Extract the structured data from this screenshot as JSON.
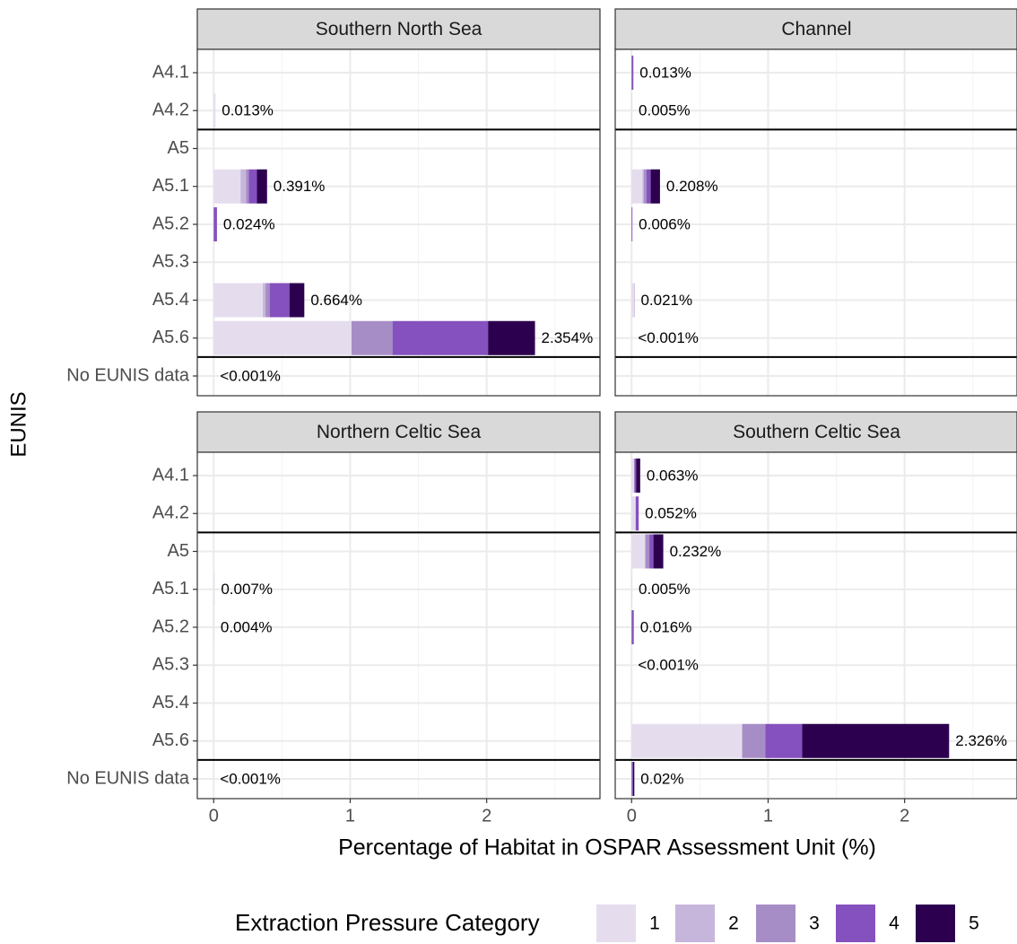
{
  "chart_data": {
    "type": "bar",
    "orientation": "horizontal",
    "stacked": true,
    "x_label": "Percentage of Habitat in OSPAR Assessment Unit (%)",
    "y_label": "EUNIS",
    "legend_title": "Extraction Pressure Category",
    "legend_position": "bottom",
    "grid": true,
    "categories": [
      "A4.1",
      "A4.2",
      "A5",
      "A5.1",
      "A5.2",
      "A5.3",
      "A5.4",
      "A5.6",
      "No EUNIS data"
    ],
    "xlim": [
      -0.12,
      2.83
    ],
    "xticks": [
      0,
      1,
      2
    ],
    "minor_xticks": [
      0.5,
      1.5,
      2.5
    ],
    "series": [
      {
        "name": "1",
        "color": "#e5ddee"
      },
      {
        "name": "2",
        "color": "#c6b6db"
      },
      {
        "name": "3",
        "color": "#a78dc6"
      },
      {
        "name": "4",
        "color": "#8551be"
      },
      {
        "name": "5",
        "color": "#2d004f"
      }
    ],
    "facets": [
      {
        "title": "Southern North Sea",
        "values": [
          [
            0,
            0.013,
            0,
            0.197,
            0,
            0,
            0.36,
            1.01,
            0.0005
          ],
          [
            0,
            0,
            0,
            0.04,
            0,
            0,
            0.02,
            0,
            0
          ],
          [
            0,
            0,
            0,
            0.02,
            0,
            0,
            0.03,
            0.3,
            0
          ],
          [
            0,
            0,
            0,
            0.06,
            0.024,
            0,
            0.145,
            0.7,
            0
          ],
          [
            0,
            0,
            0,
            0.074,
            0,
            0,
            0.109,
            0.344,
            0
          ]
        ],
        "totals": [
          null,
          0.013,
          null,
          0.391,
          0.024,
          null,
          0.664,
          2.354,
          0.0005
        ],
        "value_labels": [
          null,
          "0.013%",
          null,
          "0.391%",
          "0.024%",
          null,
          "0.664%",
          "2.354%",
          "<0.001%"
        ]
      },
      {
        "title": "Channel",
        "values": [
          [
            0,
            0.005,
            0,
            0.08,
            0,
            0,
            0.018,
            0.0005,
            0
          ],
          [
            0,
            0,
            0,
            0.01,
            0,
            0,
            0,
            0,
            0
          ],
          [
            0,
            0,
            0,
            0.02,
            0,
            0,
            0.003,
            0,
            0
          ],
          [
            0.013,
            0,
            0,
            0.03,
            0.006,
            0,
            0,
            0,
            0
          ],
          [
            0,
            0,
            0,
            0.068,
            0,
            0,
            0,
            0,
            0
          ]
        ],
        "totals": [
          0.013,
          0.005,
          null,
          0.208,
          0.006,
          null,
          0.021,
          0.0005,
          null
        ],
        "value_labels": [
          "0.013%",
          "0.005%",
          null,
          "0.208%",
          "0.006%",
          null,
          "0.021%",
          "<0.001%",
          null
        ]
      },
      {
        "title": "Northern Celtic Sea",
        "values": [
          [
            0,
            0,
            0,
            0.007,
            0.004,
            0,
            0,
            0,
            0.0005
          ],
          [
            0,
            0,
            0,
            0,
            0,
            0,
            0,
            0,
            0
          ],
          [
            0,
            0,
            0,
            0,
            0,
            0,
            0,
            0,
            0
          ],
          [
            0,
            0,
            0,
            0,
            0,
            0,
            0,
            0,
            0
          ],
          [
            0,
            0,
            0,
            0,
            0,
            0,
            0,
            0,
            0
          ]
        ],
        "totals": [
          null,
          null,
          null,
          0.007,
          0.004,
          null,
          null,
          null,
          0.0005
        ],
        "value_labels": [
          null,
          null,
          null,
          "0.007%",
          "0.004%",
          null,
          null,
          null,
          "<0.001%"
        ]
      },
      {
        "title": "Southern Celtic Sea",
        "values": [
          [
            0.02,
            0.03,
            0.1,
            0.005,
            0,
            0.0005,
            0,
            0.81,
            0
          ],
          [
            0,
            0,
            0,
            0,
            0,
            0,
            0,
            0,
            0
          ],
          [
            0,
            0,
            0.03,
            0,
            0,
            0,
            0,
            0.17,
            0
          ],
          [
            0.013,
            0.022,
            0.03,
            0,
            0.016,
            0,
            0,
            0.27,
            0.01
          ],
          [
            0.03,
            0,
            0.072,
            0,
            0,
            0,
            0,
            1.076,
            0.01
          ]
        ],
        "totals": [
          0.063,
          0.052,
          0.232,
          0.005,
          0.016,
          0.0005,
          null,
          2.326,
          0.02
        ],
        "value_labels": [
          "0.063%",
          "0.052%",
          "0.232%",
          "0.005%",
          "0.016%",
          "<0.001%",
          null,
          "2.326%",
          "0.02%"
        ]
      }
    ]
  }
}
